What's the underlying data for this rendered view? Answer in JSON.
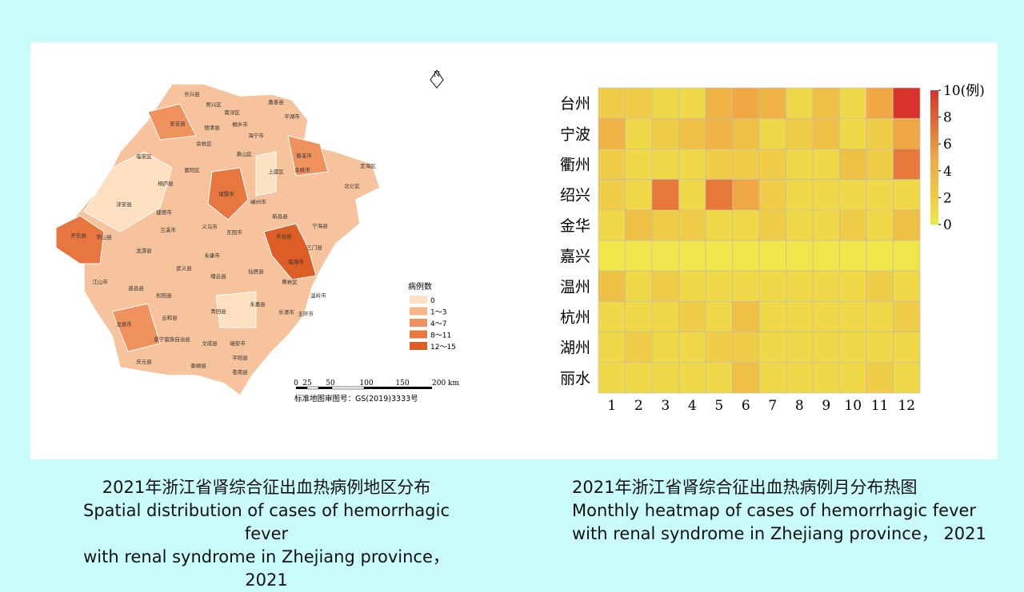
{
  "map": {
    "north": "N",
    "legend_title": "病例数",
    "legend": [
      {
        "label": "0",
        "color": "#fde0c0"
      },
      {
        "label": "1～3",
        "color": "#f6b489"
      },
      {
        "label": "4～7",
        "color": "#f0925e"
      },
      {
        "label": "8～11",
        "color": "#e8763f"
      },
      {
        "label": "12～15",
        "color": "#dc5e26"
      }
    ],
    "scale_labels": [
      "0",
      "25",
      "50",
      "100",
      "150",
      "200 km"
    ],
    "approval": "标准地图审图号：GS(2019)3333号",
    "labels": [
      "长兴县",
      "吴兴区",
      "南浔区",
      "嘉善县",
      "安吉县",
      "德清县",
      "桐乡市",
      "平湖市",
      "海宁市",
      "临安区",
      "余杭区",
      "富阳区",
      "萧山区",
      "慈溪市",
      "余姚市",
      "上虞区",
      "定海区",
      "北仑区",
      "淳安县",
      "建德市",
      "桐庐县",
      "诸暨市",
      "嵊州市",
      "新昌县",
      "宁海县",
      "开化县",
      "常山县",
      "兰溪市",
      "义乌市",
      "东阳市",
      "天台县",
      "三门县",
      "临海市",
      "龙游县",
      "江山市",
      "遂昌县",
      "武义县",
      "永康市",
      "仙居县",
      "黄岩区",
      "松阳县",
      "缙云县",
      "龙泉市",
      "云和县",
      "青田县",
      "永嘉县",
      "乐清市",
      "温岭市",
      "玉环市",
      "庆元县",
      "景宁畲族自治县",
      "文成县",
      "瑞安市",
      "泰顺县",
      "平阳县",
      "苍南县"
    ]
  },
  "chart_data": {
    "type": "heatmap",
    "categories": [
      "1",
      "2",
      "3",
      "4",
      "5",
      "6",
      "7",
      "8",
      "9",
      "10",
      "11",
      "12"
    ],
    "rows": [
      "台州",
      "宁波",
      "衢州",
      "绍兴",
      "金华",
      "嘉兴",
      "温州",
      "杭州",
      "湖州",
      "丽水"
    ],
    "values": [
      [
        2,
        2,
        1,
        1,
        4,
        5,
        4,
        1,
        3,
        1,
        5,
        10
      ],
      [
        4,
        1,
        2,
        3,
        4,
        3,
        1,
        2,
        3,
        1,
        2,
        5
      ],
      [
        2,
        1,
        1,
        1,
        2,
        2,
        2,
        1,
        1,
        3,
        2,
        7
      ],
      [
        2,
        1,
        7,
        1,
        7,
        5,
        2,
        1,
        1,
        1,
        1,
        1
      ],
      [
        1,
        3,
        2,
        2,
        1,
        1,
        2,
        1,
        1,
        2,
        1,
        3
      ],
      [
        0,
        0,
        0,
        0,
        0,
        0,
        0,
        0,
        0,
        0,
        0,
        0
      ],
      [
        3,
        1,
        2,
        1,
        1,
        1,
        1,
        1,
        1,
        1,
        2,
        1
      ],
      [
        1,
        1,
        1,
        2,
        1,
        3,
        1,
        1,
        1,
        1,
        1,
        2
      ],
      [
        1,
        2,
        1,
        1,
        2,
        2,
        1,
        1,
        1,
        1,
        1,
        1
      ],
      [
        1,
        1,
        1,
        1,
        1,
        3,
        1,
        1,
        1,
        1,
        2,
        1
      ]
    ],
    "colorbar": {
      "lim": [
        0,
        10
      ],
      "ticks": [
        0,
        2,
        4,
        6,
        8,
        {
          "value": 10,
          "label": "10(例)"
        }
      ],
      "colors": [
        "#f0e54a",
        "#efa844",
        "#d8322b"
      ]
    }
  },
  "captions": {
    "left": [
      "2021年浙江省肾综合征出血热病例地区分布",
      "Spatial distribution of cases of hemorrhagic fever",
      "with renal syndrome in Zhejiang province， 2021"
    ],
    "right": [
      "2021年浙江省肾综合征出血热病例月分布热图",
      "Monthly heatmap of cases of hemorrhagic fever",
      "with renal syndrome in Zhejiang province， 2021"
    ]
  }
}
